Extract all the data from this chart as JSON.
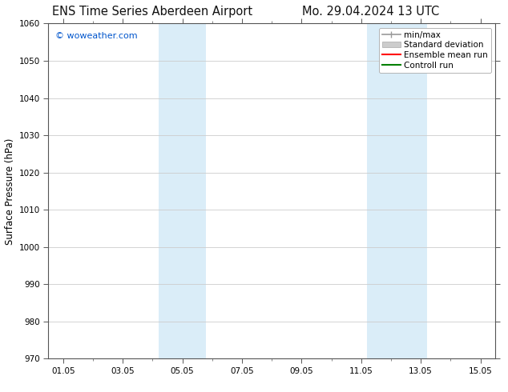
{
  "title_left": "ENS Time Series Aberdeen Airport",
  "title_right": "Mo. 29.04.2024 13 UTC",
  "ylabel": "Surface Pressure (hPa)",
  "ylim": [
    970,
    1060
  ],
  "yticks": [
    970,
    980,
    990,
    1000,
    1010,
    1020,
    1030,
    1040,
    1050,
    1060
  ],
  "xlim": [
    0.5,
    15.5
  ],
  "xtick_labels": [
    "01.05",
    "03.05",
    "05.05",
    "07.05",
    "09.05",
    "11.05",
    "13.05",
    "15.05"
  ],
  "xtick_positions": [
    1,
    3,
    5,
    7,
    9,
    11,
    13,
    15
  ],
  "shaded_bands": [
    {
      "xmin": 4.2,
      "xmax": 5.8,
      "color": "#daedf8"
    },
    {
      "xmin": 11.2,
      "xmax": 13.2,
      "color": "#daedf8"
    }
  ],
  "watermark": "© woweather.com",
  "watermark_color": "#0055cc",
  "bg_color": "#ffffff",
  "plot_bg_color": "#ffffff",
  "grid_color": "#cccccc",
  "axis_color": "#555555",
  "legend_entries": [
    {
      "label": "min/max",
      "color": "#999999",
      "lw": 1.2,
      "style": "-",
      "type": "line_with_caps"
    },
    {
      "label": "Standard deviation",
      "color": "#cccccc",
      "lw": 8,
      "style": "-",
      "type": "thick_line"
    },
    {
      "label": "Ensemble mean run",
      "color": "#ff0000",
      "lw": 1.5,
      "style": "-",
      "type": "line"
    },
    {
      "label": "Controll run",
      "color": "#008000",
      "lw": 1.5,
      "style": "-",
      "type": "line"
    }
  ],
  "title_fontsize": 10.5,
  "tick_fontsize": 7.5,
  "ylabel_fontsize": 8.5,
  "legend_fontsize": 7.5,
  "watermark_fontsize": 8
}
